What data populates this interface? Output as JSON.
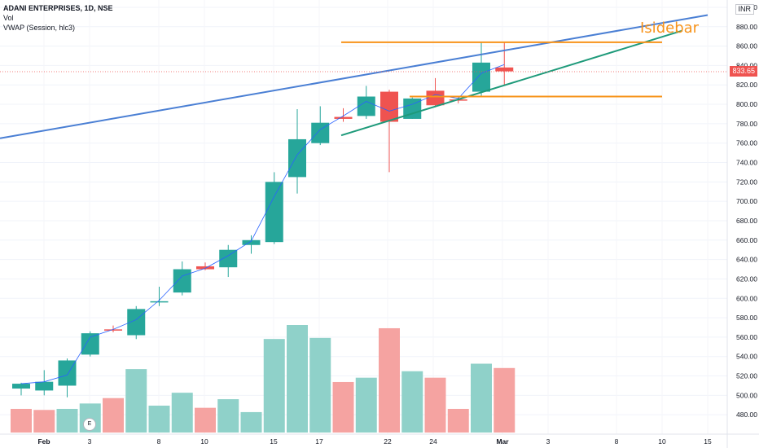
{
  "header": {
    "symbol": "ADANI ENTERPRISES, 1D, NSE",
    "volume_label": "Vol",
    "vwap_label": "VWAP (Session, hlc3)",
    "currency": "INR"
  },
  "watermark": "Isidebar",
  "price_badge": "833.65",
  "earnings_badge": "E",
  "colors": {
    "up": "#26a69a",
    "down": "#ef5350",
    "up_volume": "#8fd1c9",
    "down_volume": "#f5a3a1",
    "resistance_line": "#4a7fd4",
    "support_line": "#1e9a7a",
    "horizontal_levels": "#f7931a",
    "price_line": "#ef5350"
  },
  "chart_data": {
    "type": "candlestick",
    "title": "ADANI ENTERPRISES, 1D, NSE",
    "y_axis": {
      "ylim": [
        470,
        898
      ],
      "tick_labels": [
        "480.00",
        "500.00",
        "520.00",
        "540.00",
        "560.00",
        "580.00",
        "600.00",
        "620.00",
        "640.00",
        "660.00",
        "680.00",
        "700.00",
        "720.00",
        "740.00",
        "760.00",
        "780.00",
        "800.00",
        "820.00",
        "840.00",
        "860.00",
        "880.00",
        "900.00"
      ]
    },
    "x_axis": {
      "tick_labels": [
        "Feb",
        "3",
        "8",
        "10",
        "15",
        "17",
        "22",
        "24",
        "Mar",
        "3",
        "8",
        "10",
        "15"
      ]
    },
    "last_price": 833.65,
    "candles": [
      {
        "date": "Jan 28",
        "open": 507,
        "high": 513,
        "low": 500,
        "close": 512
      },
      {
        "date": "Jan 31",
        "open": 505,
        "high": 526,
        "low": 500,
        "close": 514
      },
      {
        "date": "Feb 1",
        "open": 510,
        "high": 538,
        "low": 498,
        "close": 536
      },
      {
        "date": "Feb 2",
        "open": 542,
        "high": 566,
        "low": 540,
        "close": 564
      },
      {
        "date": "Feb 3",
        "open": 568,
        "high": 572,
        "low": 565,
        "close": 567
      },
      {
        "date": "Feb 4",
        "open": 562,
        "high": 592,
        "low": 558,
        "close": 589
      },
      {
        "date": "Feb 7",
        "open": 596,
        "high": 612,
        "low": 592,
        "close": 597
      },
      {
        "date": "Feb 8",
        "open": 606,
        "high": 638,
        "low": 603,
        "close": 630
      },
      {
        "date": "Feb 9",
        "open": 633,
        "high": 637,
        "low": 629,
        "close": 630
      },
      {
        "date": "Feb 10",
        "open": 632,
        "high": 655,
        "low": 622,
        "close": 650
      },
      {
        "date": "Feb 11",
        "open": 655,
        "high": 665,
        "low": 646,
        "close": 660
      },
      {
        "date": "Feb 14",
        "open": 658,
        "high": 730,
        "low": 656,
        "close": 720
      },
      {
        "date": "Feb 15",
        "open": 725,
        "high": 795,
        "low": 708,
        "close": 764
      },
      {
        "date": "Feb 16",
        "open": 760,
        "high": 798,
        "low": 758,
        "close": 781
      },
      {
        "date": "Feb 17",
        "open": 787,
        "high": 796,
        "low": 782,
        "close": 785
      },
      {
        "date": "Feb 18",
        "open": 788,
        "high": 819,
        "low": 785,
        "close": 808
      },
      {
        "date": "Feb 21",
        "open": 813,
        "high": 815,
        "low": 730,
        "close": 782
      },
      {
        "date": "Feb 22",
        "open": 785,
        "high": 807,
        "low": 785,
        "close": 806
      },
      {
        "date": "Feb 23",
        "open": 814,
        "high": 827,
        "low": 797,
        "close": 799
      },
      {
        "date": "Feb 24",
        "open": 805,
        "high": 807,
        "low": 801,
        "close": 804
      },
      {
        "date": "Feb 25",
        "open": 813,
        "high": 864,
        "low": 808,
        "close": 843
      },
      {
        "date": "Feb 28",
        "open": 838,
        "high": 864,
        "low": 820,
        "close": 834
      }
    ],
    "volume": [
      {
        "date": "Jan 28",
        "direction": "down",
        "relative": 0.22
      },
      {
        "date": "Jan 31",
        "direction": "down",
        "relative": 0.21
      },
      {
        "date": "Feb 1",
        "direction": "up",
        "relative": 0.22
      },
      {
        "date": "Feb 2",
        "direction": "up",
        "relative": 0.27
      },
      {
        "date": "Feb 3",
        "direction": "down",
        "relative": 0.32
      },
      {
        "date": "Feb 4",
        "direction": "up",
        "relative": 0.59
      },
      {
        "date": "Feb 7",
        "direction": "up",
        "relative": 0.25
      },
      {
        "date": "Feb 8",
        "direction": "up",
        "relative": 0.37
      },
      {
        "date": "Feb 9",
        "direction": "down",
        "relative": 0.23
      },
      {
        "date": "Feb 10",
        "direction": "up",
        "relative": 0.31
      },
      {
        "date": "Feb 11",
        "direction": "up",
        "relative": 0.19
      },
      {
        "date": "Feb 14",
        "direction": "up",
        "relative": 0.87
      },
      {
        "date": "Feb 15",
        "direction": "up",
        "relative": 1.0
      },
      {
        "date": "Feb 16",
        "direction": "up",
        "relative": 0.88
      },
      {
        "date": "Feb 17",
        "direction": "down",
        "relative": 0.47
      },
      {
        "date": "Feb 18",
        "direction": "up",
        "relative": 0.51
      },
      {
        "date": "Feb 21",
        "direction": "down",
        "relative": 0.97
      },
      {
        "date": "Feb 22",
        "direction": "up",
        "relative": 0.57
      },
      {
        "date": "Feb 23",
        "direction": "down",
        "relative": 0.51
      },
      {
        "date": "Feb 24",
        "direction": "down",
        "relative": 0.22
      },
      {
        "date": "Feb 25",
        "direction": "up",
        "relative": 0.64
      },
      {
        "date": "Feb 28",
        "direction": "down",
        "relative": 0.6
      }
    ],
    "vwap": [
      512,
      514,
      521,
      560,
      568,
      578,
      598,
      623,
      631,
      644,
      659,
      705,
      748,
      774,
      788,
      803,
      793,
      800,
      810,
      806,
      832,
      841
    ],
    "trendlines": [
      {
        "name": "resistance",
        "start": {
          "date": "Jan 27",
          "price": 765
        },
        "end": {
          "date": "Mar 15",
          "price": 892
        }
      },
      {
        "name": "support",
        "start": {
          "date": "Feb 18",
          "price": 768
        },
        "end": {
          "date": "Mar 14",
          "price": 876
        }
      }
    ],
    "horizontal_levels": [
      {
        "name": "upper-level",
        "price": 864,
        "from": "Feb 18",
        "to": "Mar 10"
      },
      {
        "name": "lower-level",
        "price": 808,
        "from": "Feb 24",
        "to": "Mar 10"
      }
    ]
  }
}
